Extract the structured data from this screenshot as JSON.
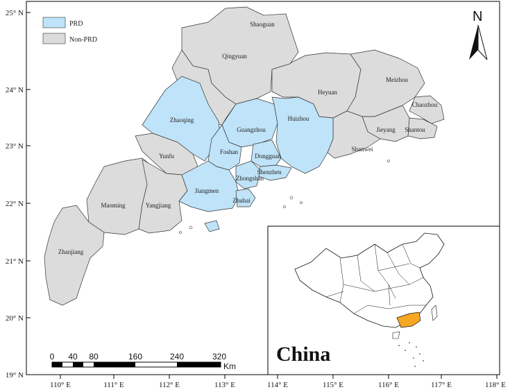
{
  "legend": {
    "prd_label": "PRD",
    "non_prd_label": "Non-PRD",
    "prd_color": "#bfe3f8",
    "non_prd_color": "#dcdcdc"
  },
  "north_label": "N",
  "latitude_labels": [
    "25° N",
    "24° N",
    "23° N",
    "22° N",
    "21° N",
    "20° N",
    "19° N"
  ],
  "longitude_labels": [
    "110° E",
    "111° E",
    "112° E",
    "113° E",
    "114° E",
    "115° E",
    "116° E",
    "117° E",
    "118° E"
  ],
  "scale_bar": {
    "ticks": [
      "0",
      "40",
      "80",
      "160",
      "240",
      "320"
    ],
    "unit": "Km"
  },
  "cities": {
    "shaoguan": "Shaoguan",
    "qingyuan": "Qingyuan",
    "heyuan": "Heyuan",
    "meizhou": "Meizhou",
    "chaozhou": "Chaozhou",
    "shantou": "Shantou",
    "jieyang": "Jieyang",
    "shanwei": "Shanwei",
    "huizhou": "Huizhou",
    "guangzhou": "Guangzhou",
    "dongguan": "Dongguan",
    "shenzhen": "Shenzhen",
    "zhaoqing": "Zhaoqing",
    "foshan": "Foshan",
    "yunfu": "Yunfu",
    "zhongshan": "Zhongshan",
    "jiangmen": "Jiangmen",
    "zhuhai": "Zhuhai",
    "maoming": "Maoming",
    "yangjiang": "Yangjiang",
    "zhanjiang": "Zhanjiang"
  },
  "inset": {
    "label": "China",
    "highlight_color": "#f5a623"
  }
}
